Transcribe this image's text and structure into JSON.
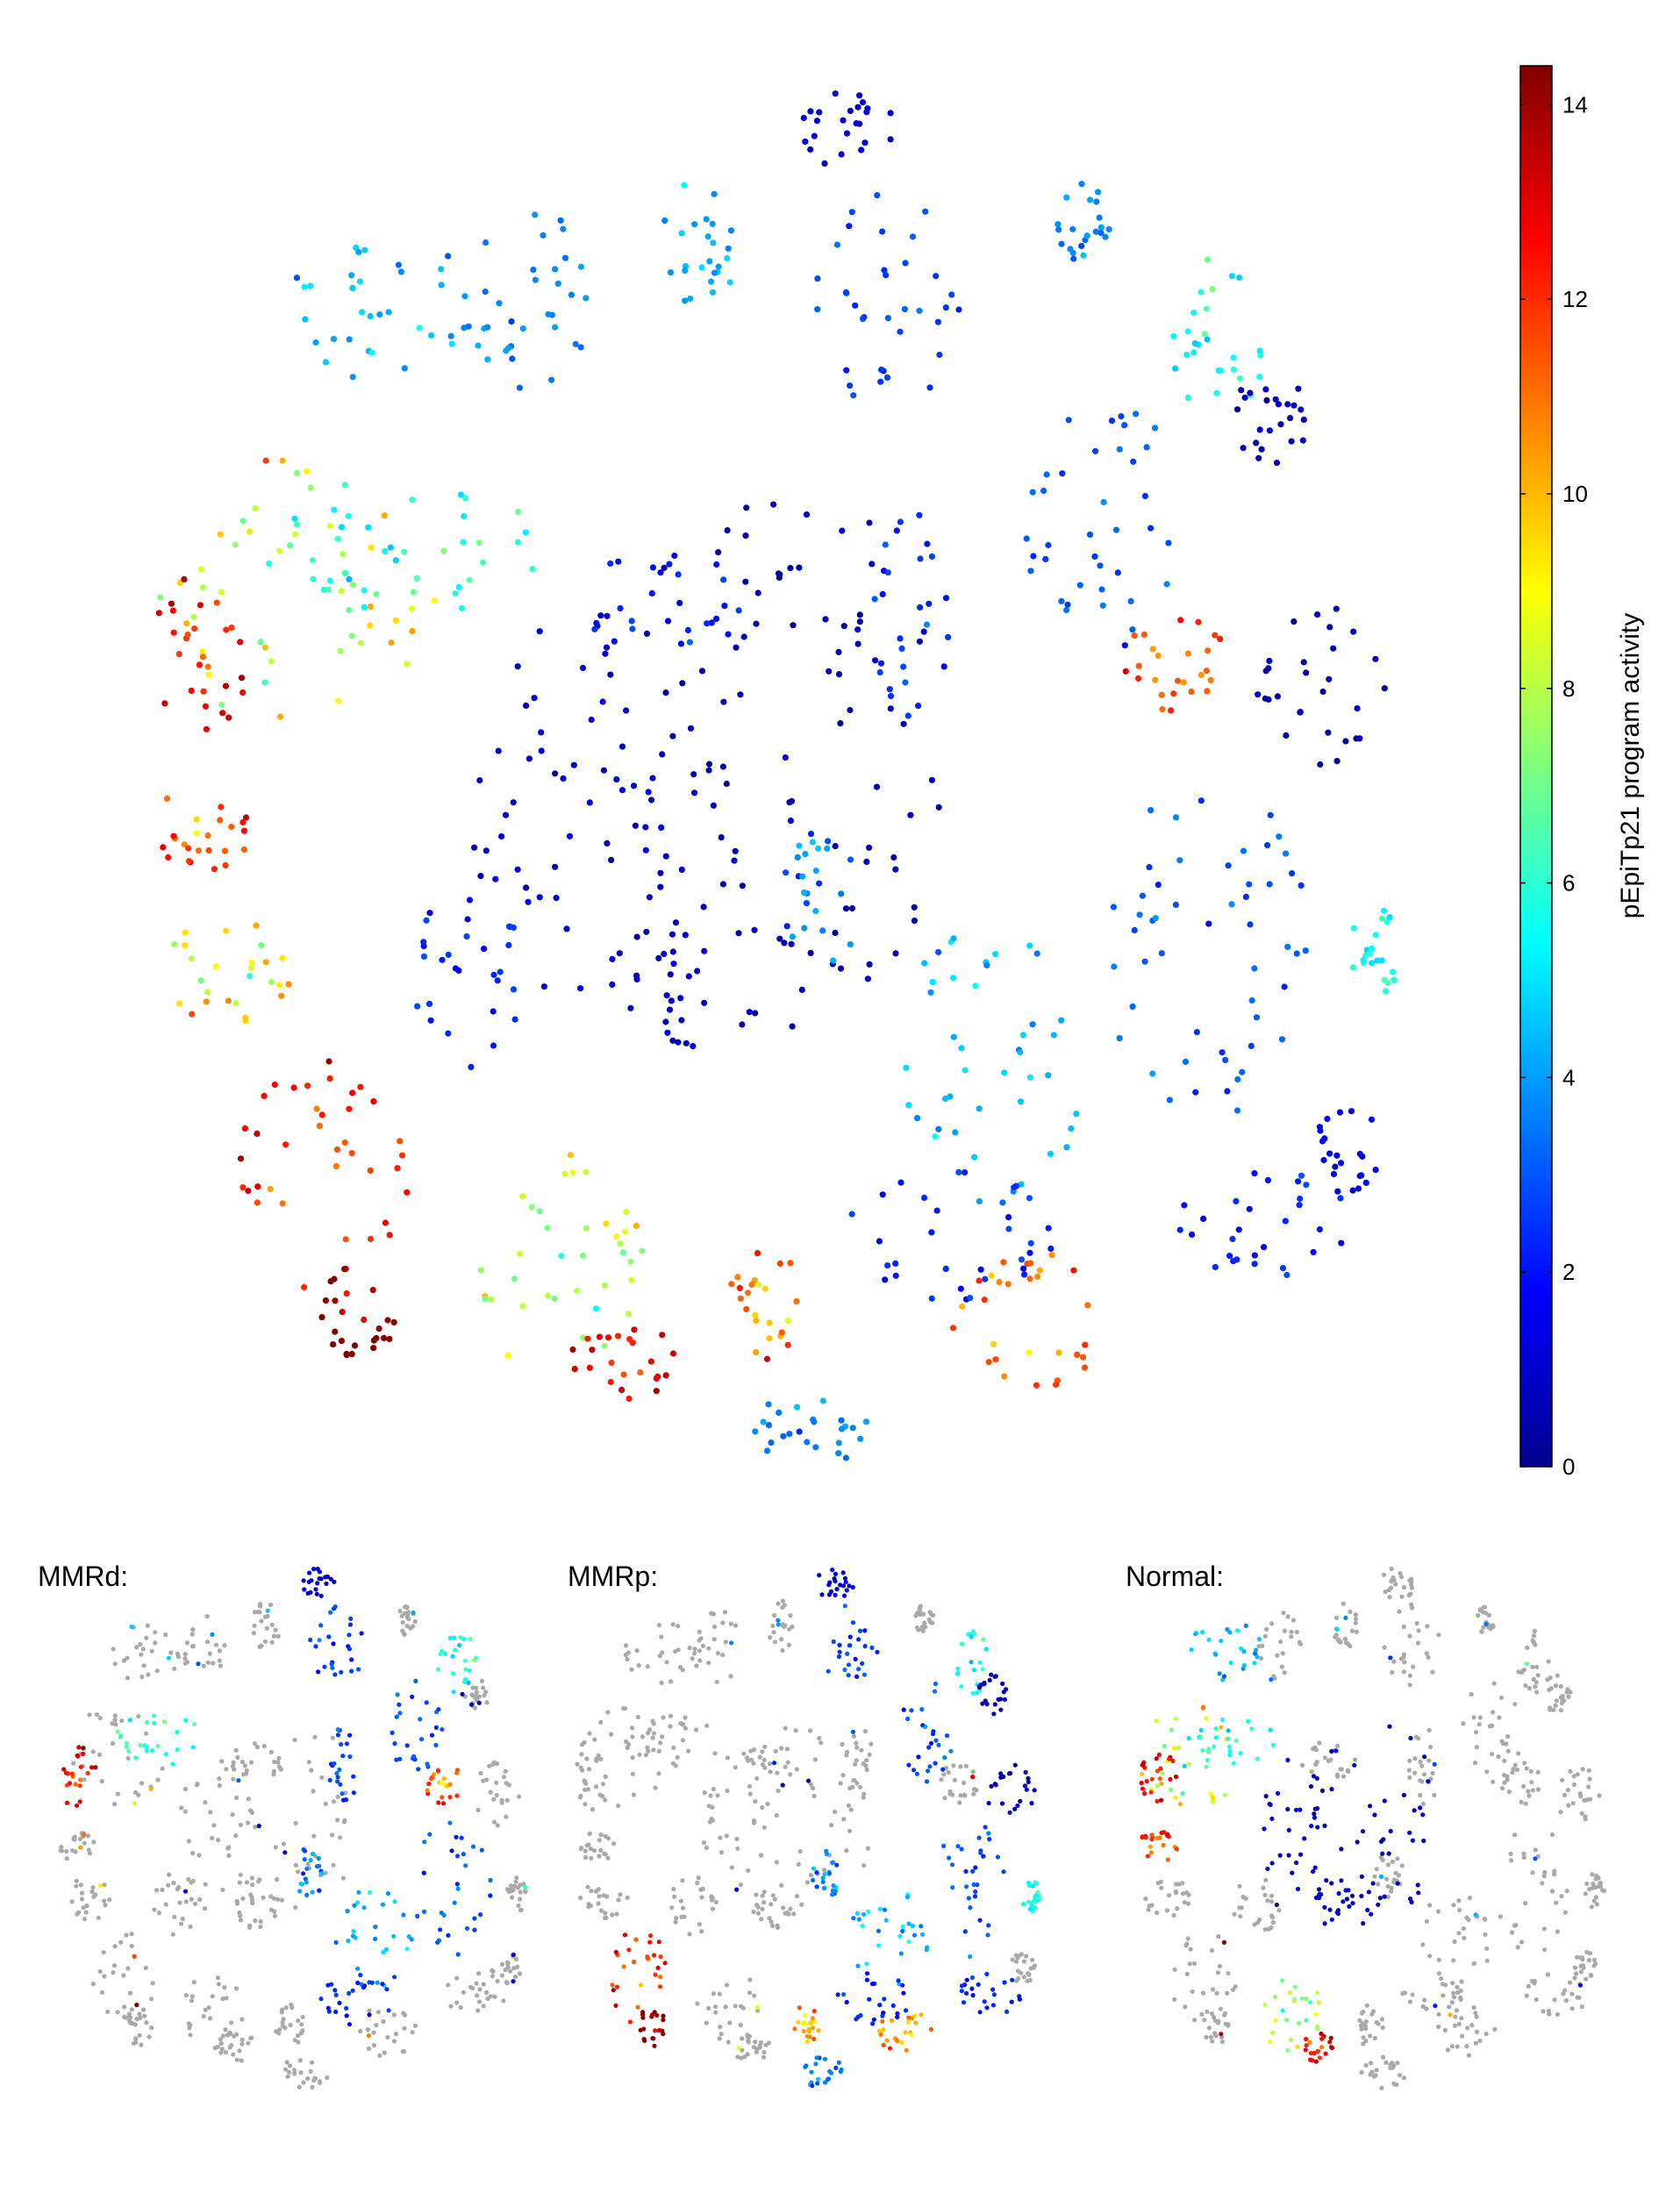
{
  "chart_data": {
    "type": "scatter",
    "colormap": "jet",
    "background_points_color": "#a9a9a9",
    "colorbar": {
      "label": "pEpiTp21 program activity",
      "range": [
        0,
        14.4
      ],
      "ticks": [
        0,
        2,
        4,
        6,
        8,
        10,
        12,
        14
      ],
      "tick_labels": [
        "0",
        "2",
        "4",
        "6",
        "8",
        "10",
        "12",
        "14"
      ]
    },
    "panels": [
      {
        "id": "all",
        "title": ""
      },
      {
        "id": "mmrd",
        "title": "MMRd:"
      },
      {
        "id": "mmrp",
        "title": "MMRp:"
      },
      {
        "id": "normal",
        "title": "Normal:"
      }
    ]
  }
}
